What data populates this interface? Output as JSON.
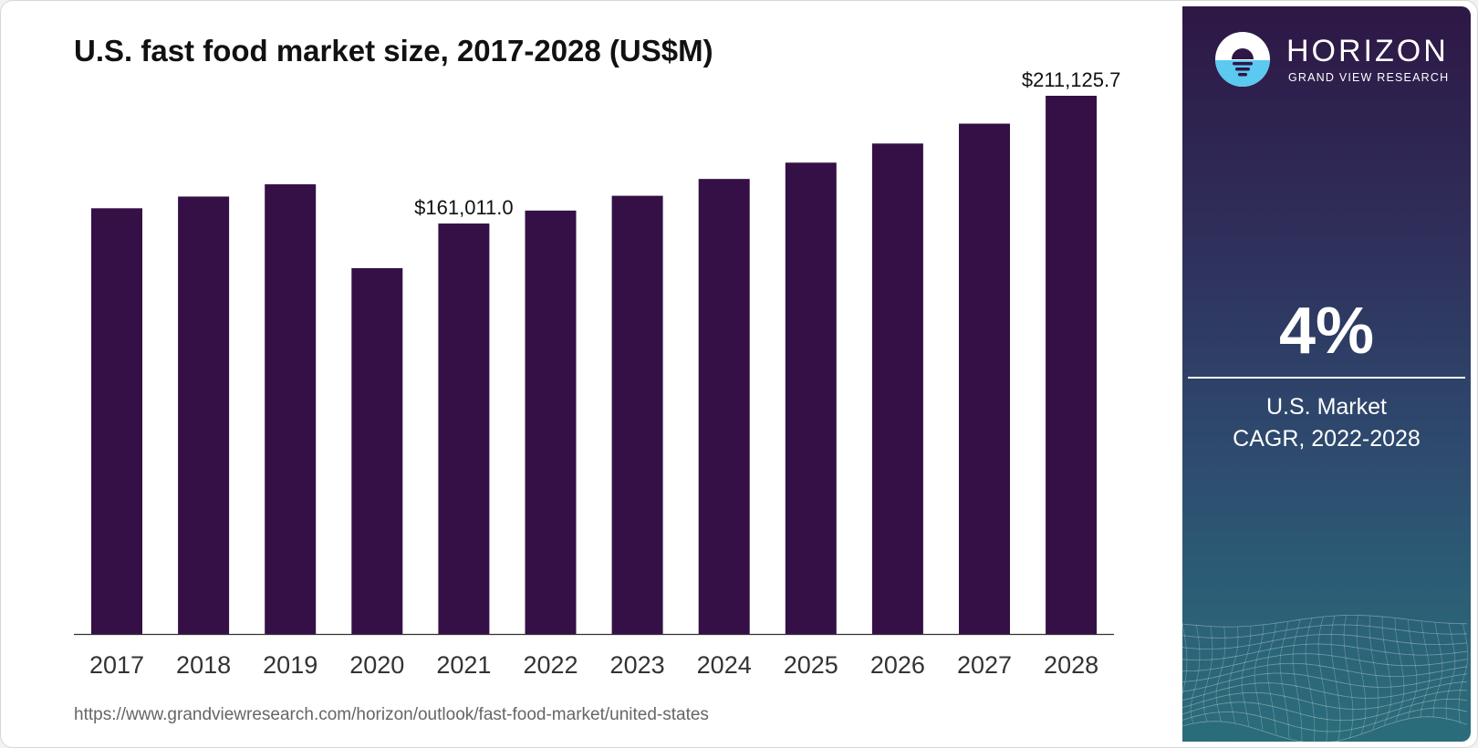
{
  "chart_data": {
    "type": "bar",
    "title": "U.S. fast food market size, 2017-2028 (US$M)",
    "categories": [
      "2017",
      "2018",
      "2019",
      "2020",
      "2021",
      "2022",
      "2023",
      "2024",
      "2025",
      "2026",
      "2027",
      "2028"
    ],
    "values": [
      167000,
      171600,
      176400,
      143500,
      161011.0,
      166100,
      171900,
      178500,
      184900,
      192400,
      200200,
      211125.7
    ],
    "data_labels": [
      {
        "category": "2021",
        "text": "$161,011.0"
      },
      {
        "category": "2028",
        "text": "$211,125.7"
      }
    ],
    "ylim": [
      0,
      211125.7
    ],
    "xlabel": "",
    "ylabel": "",
    "grid": false,
    "bar_color": "#341046"
  },
  "source_url": "https://www.grandviewresearch.com/horizon/outlook/fast-food-market/united-states",
  "sidebar": {
    "logo_word": "HORIZON",
    "logo_sub": "GRAND VIEW RESEARCH",
    "cagr_value": "4%",
    "cagr_label_line1": "U.S. Market",
    "cagr_label_line2": "CAGR, 2022-2028"
  },
  "colors": {
    "accent": "#341046",
    "logo_sky": "#5bc9f0"
  }
}
